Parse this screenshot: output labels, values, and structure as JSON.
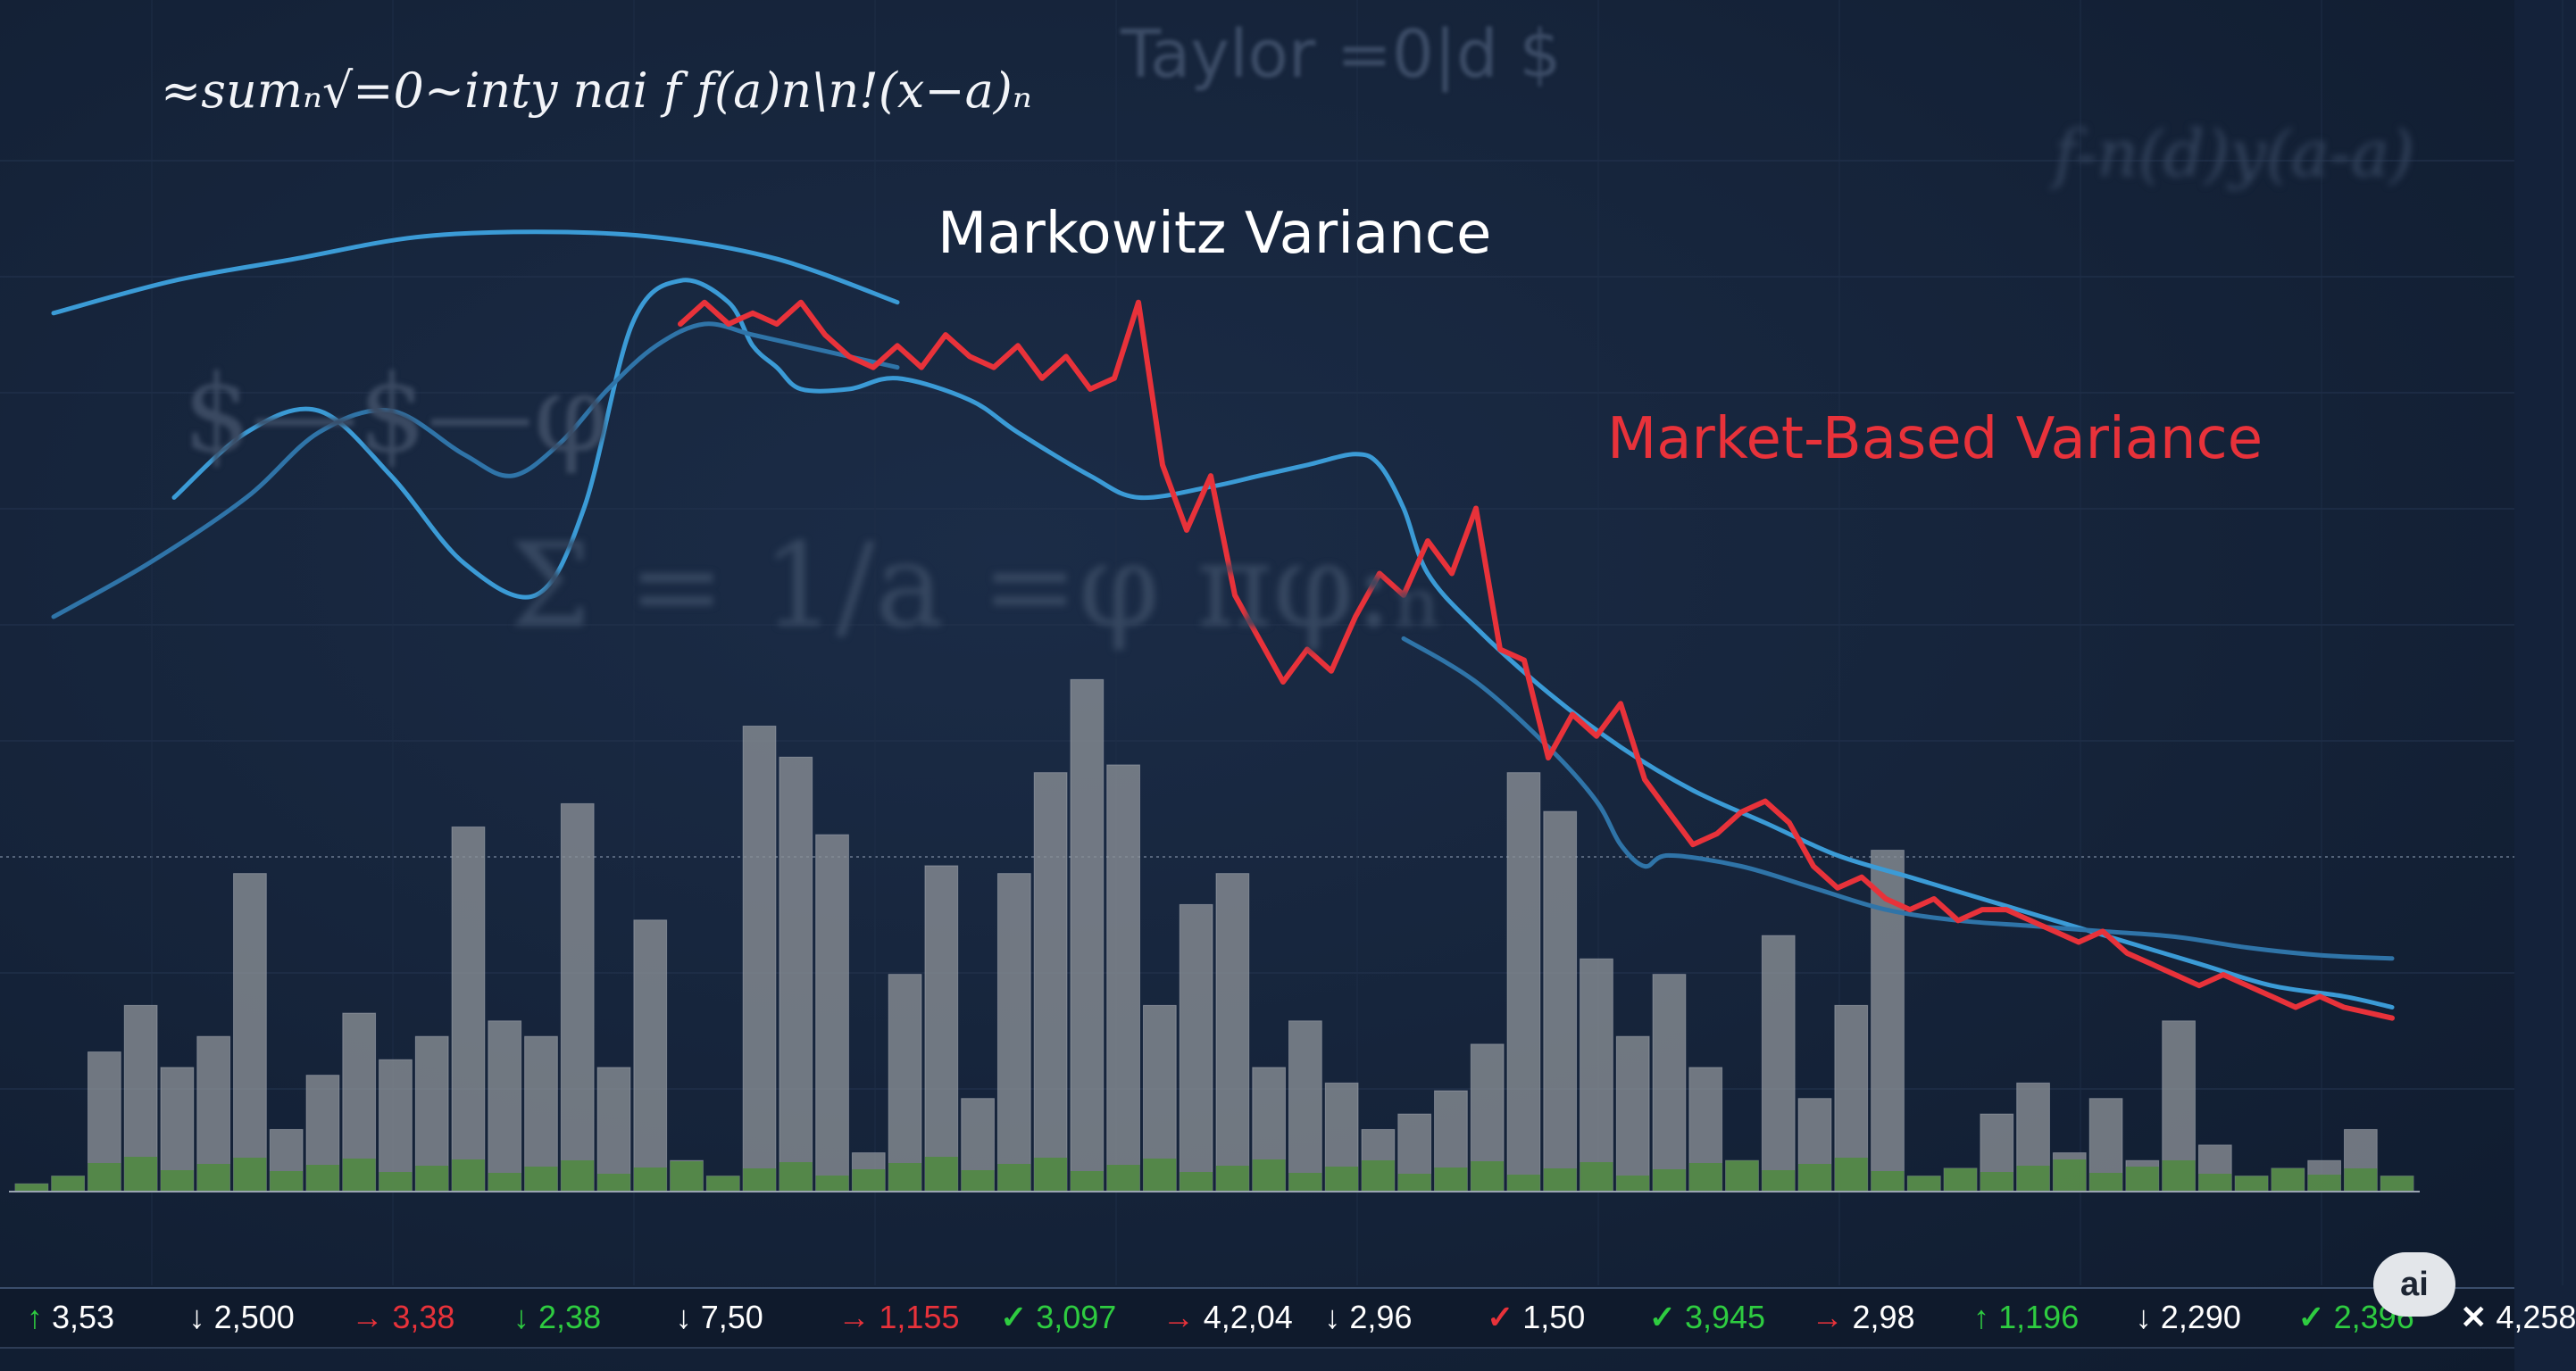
{
  "formulas": {
    "main": "≈sumₙ√=0~inty nai f f(a)n\\n!(x−a)ₙ",
    "taylor": "Taylor =0|d $",
    "right": "f-n(d)y(a-a)",
    "dollar": "$—$—φ",
    "sigma": "Σ = 1/a =φ  πφ:ₙ"
  },
  "labels": {
    "markowitz": "Markowitz Variance",
    "market": "Market-Based Variance"
  },
  "colors": {
    "background": "#14223a",
    "markowitz": "#3b9bd6",
    "market": "#e8323a",
    "bars": "#8a8f96",
    "bar_fill": "#4f8a3f",
    "positive": "#2ecc40",
    "negative": "#e8323a",
    "neutral": "#ffffff"
  },
  "ticker": [
    {
      "arrow": "↑",
      "value": "3,53",
      "color": "#ffffff",
      "arrow_color": "#2ecc40"
    },
    {
      "arrow": "↓",
      "value": "2,500",
      "color": "#ffffff",
      "arrow_color": "#ffffff"
    },
    {
      "arrow": "→",
      "value": "3,38",
      "color": "#e8323a",
      "arrow_color": "#e8323a"
    },
    {
      "arrow": "↓",
      "value": "2,38",
      "color": "#2ecc40",
      "arrow_color": "#2ecc40"
    },
    {
      "arrow": "↓",
      "value": "7,50",
      "color": "#ffffff",
      "arrow_color": "#ffffff"
    },
    {
      "arrow": "→",
      "value": "1,155",
      "color": "#e8323a",
      "arrow_color": "#e8323a"
    },
    {
      "arrow": "✓",
      "value": "3,097",
      "color": "#2ecc40",
      "arrow_color": "#2ecc40"
    },
    {
      "arrow": "→",
      "value": "4,2,04",
      "color": "#ffffff",
      "arrow_color": "#e8323a"
    },
    {
      "arrow": "↓",
      "value": "2,96",
      "color": "#ffffff",
      "arrow_color": "#ffffff"
    },
    {
      "arrow": "✓",
      "value": "1,50",
      "color": "#ffffff",
      "arrow_color": "#e8323a"
    },
    {
      "arrow": "✓",
      "value": "3,945",
      "color": "#2ecc40",
      "arrow_color": "#2ecc40"
    },
    {
      "arrow": "→",
      "value": "2,98",
      "color": "#ffffff",
      "arrow_color": "#e8323a"
    },
    {
      "arrow": "↑",
      "value": "1,196",
      "color": "#2ecc40",
      "arrow_color": "#2ecc40"
    },
    {
      "arrow": "↓",
      "value": "2,290",
      "color": "#ffffff",
      "arrow_color": "#ffffff"
    },
    {
      "arrow": "✓",
      "value": "2,396",
      "color": "#2ecc40",
      "arrow_color": "#2ecc40"
    },
    {
      "arrow": "✕",
      "value": "4,258",
      "color": "#ffffff",
      "arrow_color": "#ffffff"
    }
  ],
  "badge": "ai",
  "chart_data": {
    "type": "line",
    "title": "",
    "xlabel": "",
    "ylabel": "",
    "xlim": [
      0,
      100
    ],
    "ylim": [
      0,
      100
    ],
    "grid": true,
    "series": [
      {
        "name": "Markowitz Variance",
        "color": "#3b9bd6",
        "x": [
          0,
          5,
          10,
          15,
          20,
          25,
          30,
          35
        ],
        "y": [
          81,
          84,
          86,
          88,
          88.5,
          88,
          86,
          82
        ]
      },
      {
        "name": "",
        "color": "#3b9bd6",
        "x": [
          5,
          8,
          11,
          14,
          17,
          20,
          22,
          24,
          26,
          28,
          29,
          30,
          31,
          33,
          35,
          38,
          40,
          43,
          45,
          48,
          50,
          52,
          54,
          55,
          56,
          57,
          59,
          62,
          65,
          68,
          71,
          74,
          77,
          80,
          83,
          86,
          89,
          92,
          95,
          97
        ],
        "y": [
          64,
          70,
          72,
          66,
          58,
          55,
          63,
          80,
          84,
          82,
          78,
          76,
          74,
          74,
          75,
          73,
          70,
          66,
          64,
          65,
          66,
          67,
          68,
          67,
          63,
          57,
          52,
          46,
          41,
          37,
          34,
          31,
          29,
          27,
          25,
          23,
          21,
          19,
          18,
          17
        ]
      },
      {
        "name": "",
        "color": "#2f74a8",
        "x": [
          0,
          4,
          8,
          11,
          14,
          17,
          19,
          21,
          23,
          25,
          27,
          29,
          31,
          33,
          35
        ],
        "y": [
          53,
          58,
          64,
          70,
          72,
          68,
          66,
          69,
          74,
          78,
          80,
          79,
          78,
          77,
          76
        ]
      },
      {
        "name": "",
        "color": "#2f74a8",
        "x": [
          56,
          59,
          62,
          64,
          65,
          66,
          67,
          70,
          73,
          76,
          79,
          82,
          85,
          88,
          91,
          94,
          97
        ],
        "y": [
          51,
          47,
          41,
          36,
          32,
          30,
          31,
          30,
          28,
          26,
          25,
          24.5,
          24,
          23.5,
          22.5,
          21.8,
          21.5
        ]
      },
      {
        "name": "Market-Based Variance",
        "color": "#e8323a",
        "x": [
          26,
          27,
          28,
          29,
          30,
          31,
          32,
          33,
          34,
          35,
          36,
          37,
          38,
          39,
          40,
          41,
          42,
          43,
          44,
          45,
          46,
          47,
          48,
          49,
          50,
          51,
          52,
          53,
          54,
          55,
          56,
          57,
          58,
          59,
          60,
          61,
          62,
          63,
          64,
          65,
          66,
          67,
          68,
          69,
          70,
          71,
          72,
          73,
          74,
          75,
          76,
          77,
          78,
          79,
          80,
          81,
          82,
          83,
          84,
          85,
          86,
          87,
          88,
          89,
          90,
          91,
          92,
          93,
          94,
          95,
          96,
          97
        ],
        "y": [
          80,
          82,
          80,
          81,
          80,
          82,
          79,
          77,
          76,
          78,
          76,
          79,
          77,
          76,
          78,
          75,
          77,
          74,
          75,
          82,
          67,
          61,
          66,
          55,
          51,
          47,
          50,
          48,
          53,
          57,
          55,
          60,
          57,
          63,
          50,
          49,
          40,
          44,
          42,
          45,
          38,
          35,
          32,
          33,
          35,
          36,
          34,
          30,
          28,
          29,
          27,
          26,
          27,
          25,
          26,
          26,
          25,
          24,
          23,
          24,
          22,
          21,
          20,
          19,
          20,
          19,
          18,
          17,
          18,
          17,
          16.5,
          16
        ]
      }
    ],
    "volume": {
      "color": "#8a8f96",
      "values": [
        1,
        2,
        18,
        24,
        16,
        20,
        41,
        8,
        15,
        23,
        17,
        20,
        47,
        22,
        20,
        50,
        16,
        35,
        4,
        2,
        60,
        56,
        46,
        5,
        28,
        42,
        12,
        41,
        54,
        66,
        55,
        24,
        37,
        41,
        16,
        22,
        14,
        8,
        10,
        13,
        19,
        54,
        49,
        30,
        20,
        28,
        16,
        4,
        33,
        12,
        24,
        44,
        2,
        3,
        10,
        14,
        5,
        12,
        4,
        22,
        6,
        2,
        3,
        4,
        8,
        2
      ]
    }
  }
}
